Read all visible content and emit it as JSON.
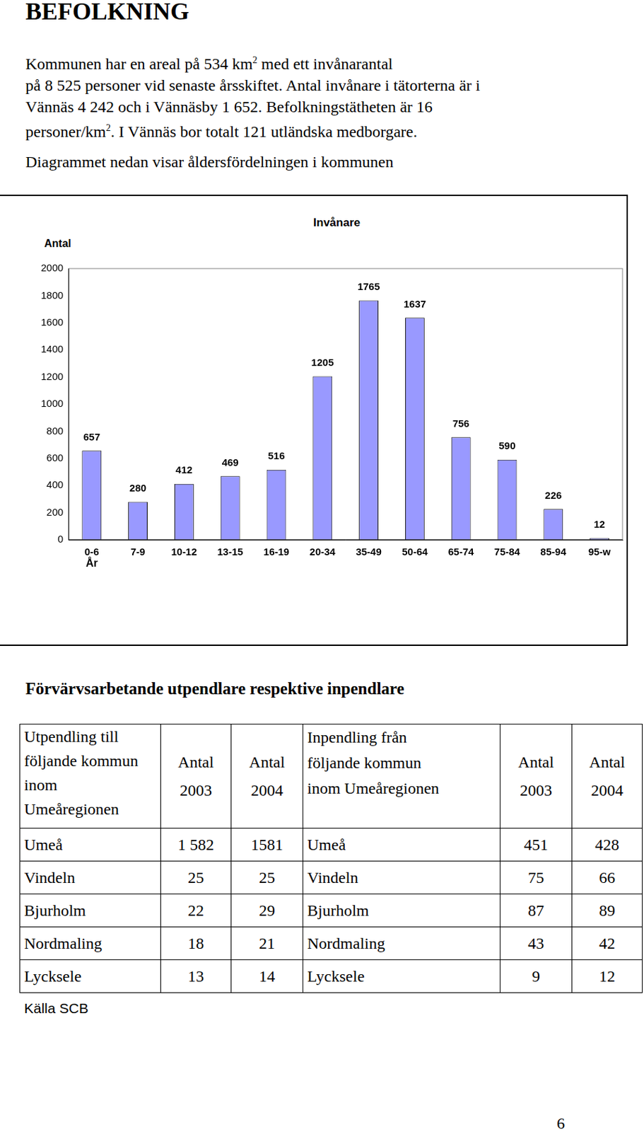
{
  "header": {
    "title": "BEFOLKNING"
  },
  "intro": {
    "lines": [
      [
        {
          "text": "Kommunen har en areal på 534 km"
        },
        {
          "sup": "2"
        },
        {
          "text": " med ett invånarantal"
        }
      ],
      [
        {
          "text": "på 8 525 personer vid senaste årsskiftet. Antal invånare i tätorterna är i"
        }
      ],
      [
        {
          "text": "Vännäs 4 242 och i Vännäsby 1 652. Befolkningstätheten är 16"
        }
      ],
      [
        {
          "text": "personer/km"
        },
        {
          "sup": "2"
        },
        {
          "text": ". I Vännäs bor totalt 121 utländska medborgare."
        }
      ]
    ],
    "caption": "Diagrammet nedan visar åldersfördelningen i kommunen"
  },
  "chart_data": {
    "type": "bar",
    "title": "Invånare",
    "y_label": "Antal",
    "x_label": "År",
    "categories": [
      "0-6",
      "7-9",
      "10-12",
      "13-15",
      "16-19",
      "20-34",
      "35-49",
      "50-64",
      "65-74",
      "75-84",
      "85-94",
      "95-w"
    ],
    "values": [
      657,
      280,
      412,
      469,
      516,
      1205,
      1765,
      1637,
      756,
      590,
      226,
      12
    ],
    "color": "#9999ff",
    "ylim": [
      0,
      2000
    ],
    "yticks": [
      0,
      200,
      400,
      600,
      800,
      1000,
      1200,
      1400,
      1600,
      1800,
      2000
    ],
    "grid": false,
    "data_labels": true
  },
  "table_section": {
    "title": "Förvärvsarbetande utpendlare respektive inpendlare",
    "table": {
      "header": [
        [
          "Utpendling till",
          "följande kommun",
          "inom",
          "Umeåregionen"
        ],
        [
          "Antal",
          "2003"
        ],
        [
          "Antal",
          "2004"
        ],
        [
          "Inpendling från",
          "följande kommun",
          "inom Umeåregionen"
        ],
        [
          "Antal",
          "2003"
        ],
        [
          "Antal",
          "2004"
        ]
      ],
      "rows": [
        [
          "Umeå",
          "1 582",
          "1581",
          "Umeå",
          "451",
          "428"
        ],
        [
          "Vindeln",
          "25",
          "25",
          "Vindeln",
          "75",
          "66"
        ],
        [
          "Bjurholm",
          "22",
          "29",
          "Bjurholm",
          "87",
          "89"
        ],
        [
          "Nordmaling",
          "18",
          "21",
          "Nordmaling",
          "43",
          "42"
        ],
        [
          "Lycksele",
          "13",
          "14",
          "Lycksele",
          "9",
          "12"
        ]
      ]
    },
    "source": "Källa SCB"
  },
  "page_number": "6"
}
